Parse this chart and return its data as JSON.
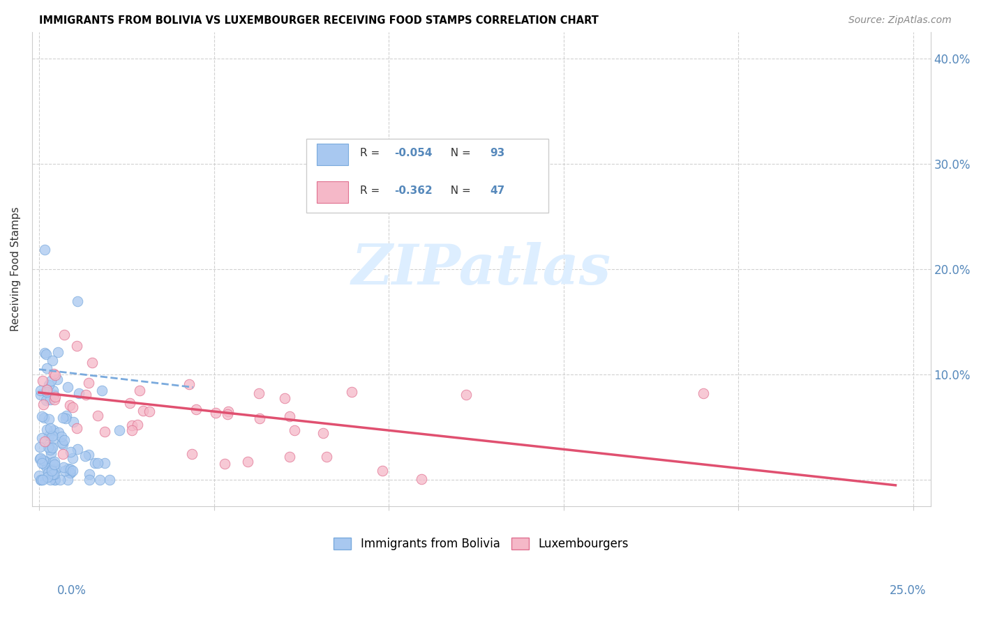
{
  "title": "IMMIGRANTS FROM BOLIVIA VS LUXEMBOURGER RECEIVING FOOD STAMPS CORRELATION CHART",
  "source": "Source: ZipAtlas.com",
  "ylabel": "Receiving Food Stamps",
  "legend_label1": "Immigrants from Bolivia",
  "legend_label2": "Luxembourgers",
  "r1": -0.054,
  "n1": 93,
  "r2": -0.362,
  "n2": 47,
  "color_blue": "#a8c8f0",
  "color_pink": "#f5b8c8",
  "color_edge_blue": "#7aaadd",
  "color_edge_pink": "#e07090",
  "color_trend_blue": "#7aaadd",
  "color_trend_pink": "#e05070",
  "color_axis_text": "#5588bb",
  "color_grid": "#cccccc",
  "watermark_color": "#ddeeff",
  "xlim": [
    -0.002,
    0.255
  ],
  "ylim": [
    -0.025,
    0.425
  ],
  "yticks": [
    0.0,
    0.1,
    0.2,
    0.3,
    0.4
  ],
  "ytick_labels_right": [
    "",
    "10.0%",
    "20.0%",
    "30.0%",
    "40.0%"
  ],
  "xtick_label_left": "0.0%",
  "xtick_label_right": "25.0%",
  "bolivia_trend_start_y": 0.105,
  "bolivia_trend_end_x": 0.044,
  "bolivia_trend_end_y": 0.088,
  "lux_trend_start_y": 0.083,
  "lux_trend_end_x": 0.245,
  "lux_trend_end_y": -0.005
}
